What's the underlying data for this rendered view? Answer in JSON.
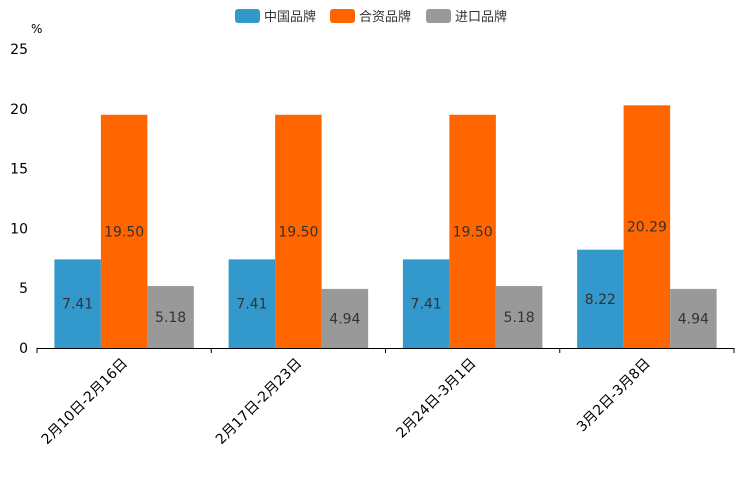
{
  "chart_data": {
    "type": "bar",
    "title": "",
    "xlabel": "",
    "ylabel": "%",
    "ylim": [
      0,
      25
    ],
    "yticks": [
      0,
      5,
      10,
      15,
      20,
      25
    ],
    "grid": false,
    "legend_position": "top-center",
    "categories": [
      "2月10日-2月16日",
      "2月17日-2月23日",
      "2月24日-3月1日",
      "3月2日-3月8日"
    ],
    "series": [
      {
        "name": "中国品牌",
        "color": "#3399CC",
        "values": [
          7.41,
          7.41,
          7.41,
          8.22
        ],
        "labels": [
          "7.41",
          "7.41",
          "7.41",
          "8.22"
        ]
      },
      {
        "name": "合资品牌",
        "color": "#FF6600",
        "values": [
          19.5,
          19.5,
          19.5,
          20.29
        ],
        "labels": [
          "19.50",
          "19.50",
          "19.50",
          "20.29"
        ]
      },
      {
        "name": "进口品牌",
        "color": "#999999",
        "values": [
          5.18,
          4.94,
          5.18,
          4.94
        ],
        "labels": [
          "5.18",
          "4.94",
          "5.18",
          "4.94"
        ]
      }
    ]
  }
}
